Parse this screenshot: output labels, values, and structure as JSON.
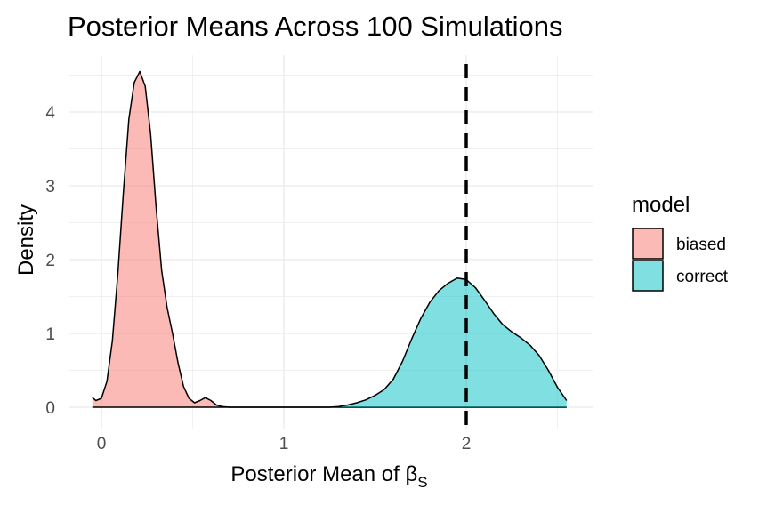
{
  "chart_data": {
    "type": "area",
    "title": "Posterior Means Across 100 Simulations",
    "xlabel": "Posterior Mean of β",
    "xlabel_subscript": "S",
    "ylabel": "Density",
    "xlim": [
      -0.06,
      2.56
    ],
    "ylim": [
      0,
      4.6
    ],
    "x_ticks": [
      0,
      1,
      2
    ],
    "y_ticks": [
      0,
      1,
      2,
      3,
      4
    ],
    "grid": true,
    "legend_title": "model",
    "legend_position": "right",
    "reference_line": {
      "x": 2.0,
      "style": "dashed",
      "color": "#000000"
    },
    "series": [
      {
        "name": "biased",
        "color": "#F8766D",
        "points": [
          [
            -0.05,
            0.13
          ],
          [
            -0.03,
            0.09
          ],
          [
            0.0,
            0.12
          ],
          [
            0.03,
            0.35
          ],
          [
            0.06,
            0.9
          ],
          [
            0.09,
            1.8
          ],
          [
            0.12,
            2.9
          ],
          [
            0.15,
            3.9
          ],
          [
            0.18,
            4.4
          ],
          [
            0.21,
            4.55
          ],
          [
            0.24,
            4.35
          ],
          [
            0.27,
            3.7
          ],
          [
            0.3,
            2.7
          ],
          [
            0.33,
            1.85
          ],
          [
            0.36,
            1.35
          ],
          [
            0.39,
            1.0
          ],
          [
            0.42,
            0.6
          ],
          [
            0.45,
            0.28
          ],
          [
            0.48,
            0.12
          ],
          [
            0.51,
            0.06
          ],
          [
            0.54,
            0.09
          ],
          [
            0.57,
            0.13
          ],
          [
            0.6,
            0.09
          ],
          [
            0.63,
            0.03
          ],
          [
            0.66,
            0.01
          ],
          [
            0.7,
            0.0
          ],
          [
            1.0,
            0.0
          ],
          [
            1.3,
            0.0
          ],
          [
            1.6,
            0.0
          ],
          [
            2.0,
            0.0
          ],
          [
            2.3,
            0.0
          ],
          [
            2.55,
            0.0
          ]
        ]
      },
      {
        "name": "correct",
        "color": "#00BFC4",
        "points": [
          [
            -0.05,
            0.0
          ],
          [
            0.5,
            0.0
          ],
          [
            1.0,
            0.0
          ],
          [
            1.25,
            0.0
          ],
          [
            1.3,
            0.01
          ],
          [
            1.35,
            0.03
          ],
          [
            1.4,
            0.06
          ],
          [
            1.45,
            0.1
          ],
          [
            1.5,
            0.16
          ],
          [
            1.55,
            0.24
          ],
          [
            1.6,
            0.38
          ],
          [
            1.65,
            0.62
          ],
          [
            1.7,
            0.92
          ],
          [
            1.75,
            1.2
          ],
          [
            1.8,
            1.42
          ],
          [
            1.85,
            1.58
          ],
          [
            1.9,
            1.68
          ],
          [
            1.95,
            1.75
          ],
          [
            2.0,
            1.73
          ],
          [
            2.05,
            1.62
          ],
          [
            2.1,
            1.45
          ],
          [
            2.15,
            1.27
          ],
          [
            2.2,
            1.12
          ],
          [
            2.25,
            1.02
          ],
          [
            2.3,
            0.94
          ],
          [
            2.35,
            0.84
          ],
          [
            2.4,
            0.7
          ],
          [
            2.45,
            0.5
          ],
          [
            2.5,
            0.27
          ],
          [
            2.55,
            0.09
          ]
        ]
      }
    ]
  }
}
